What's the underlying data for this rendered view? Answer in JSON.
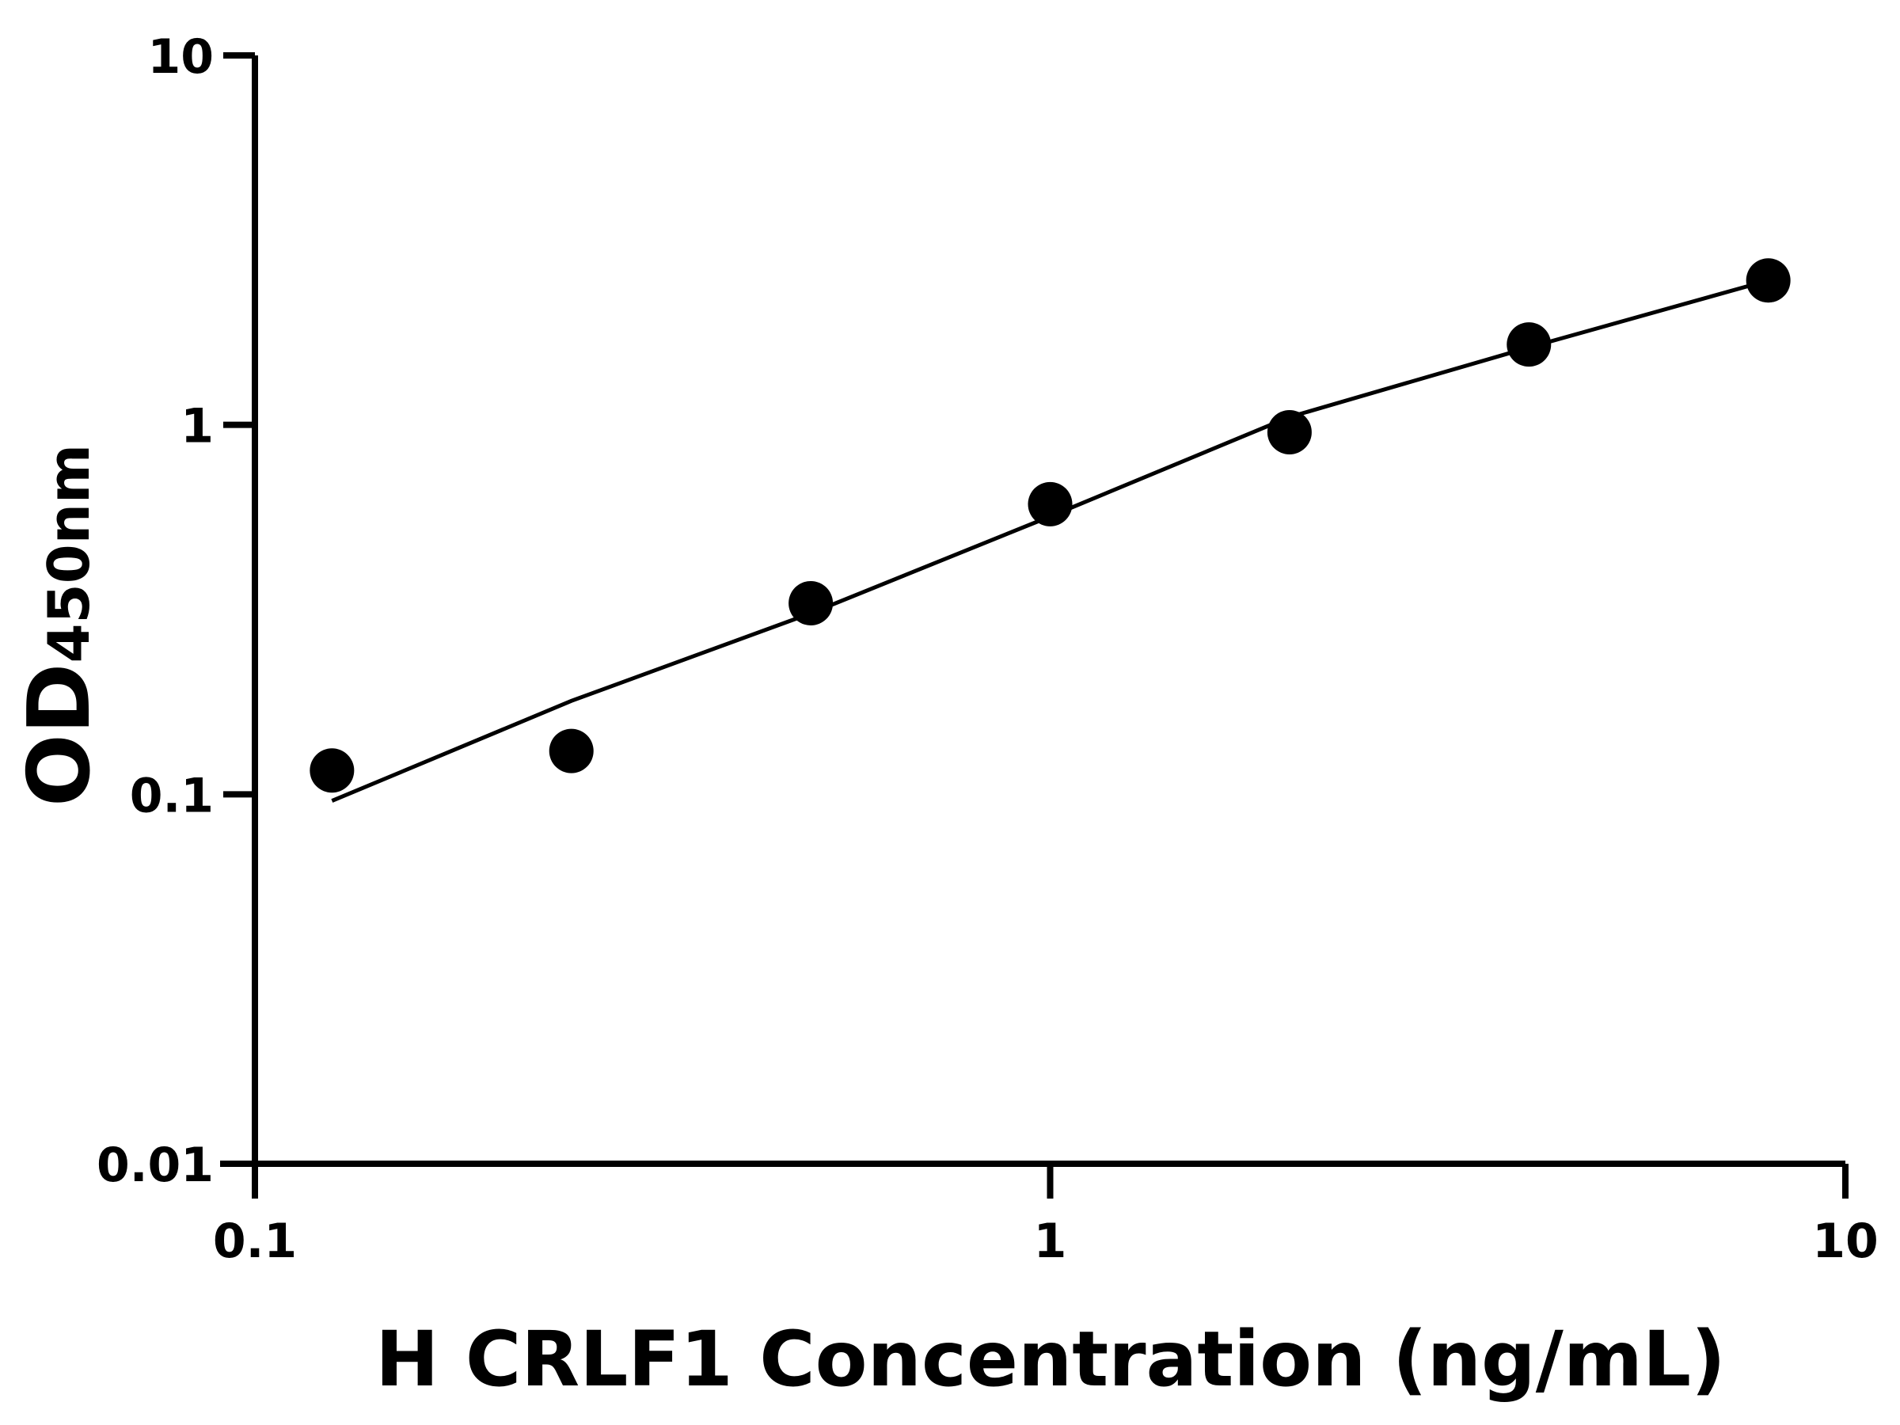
{
  "chart_data": {
    "type": "scatter",
    "x_label": "H CRLF1 Concentration (ng/mL)",
    "y_label": {
      "main": "OD",
      "subscript": "450nm"
    },
    "x": [
      0.125,
      0.25,
      0.5,
      1,
      2,
      4,
      8
    ],
    "series": [
      {
        "color": "#000000",
        "values": [
          0.116,
          0.131,
          0.329,
          0.61,
          0.955,
          1.65,
          2.46
        ]
      }
    ],
    "fit": {
      "color": "#000000",
      "x": [
        0.125,
        0.25,
        0.5,
        1,
        2,
        4,
        8
      ],
      "values": [
        0.096,
        0.179,
        0.309,
        0.565,
        1.05,
        1.62,
        2.46
      ]
    },
    "xlim": [
      0.1,
      10
    ],
    "ylim": [
      0.01,
      10
    ],
    "xticks": [
      0.1,
      1,
      10
    ],
    "yticks": [
      0.01,
      0.1,
      1,
      10
    ],
    "xscale": "log",
    "yscale": "log",
    "grid": false
  }
}
